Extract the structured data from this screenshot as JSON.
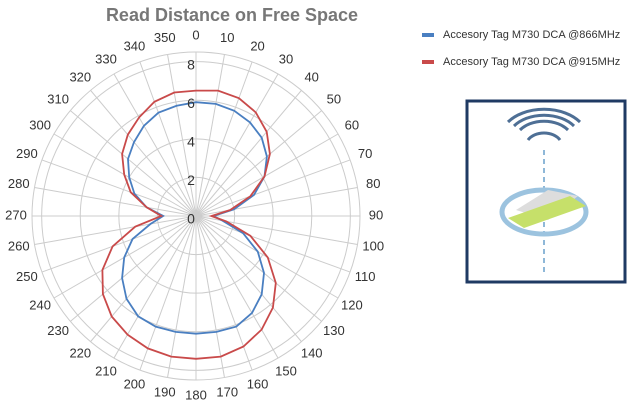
{
  "chart_data": {
    "type": "polar",
    "title": "Read Distance on Free Space",
    "theta": [
      0,
      10,
      20,
      30,
      40,
      50,
      60,
      70,
      80,
      90,
      100,
      110,
      120,
      130,
      140,
      150,
      160,
      170,
      180,
      190,
      200,
      210,
      220,
      230,
      240,
      250,
      260,
      270,
      280,
      290,
      300,
      310,
      320,
      330,
      340,
      350
    ],
    "rlim": [
      0,
      8.5
    ],
    "rticks": [
      0,
      2,
      4,
      6,
      8
    ],
    "grid": true,
    "legend": "top-right",
    "series": [
      {
        "name": "Accesory Tag M730 DCA @866MHz",
        "color": "#4a7fc1",
        "values": [
          5.9,
          5.9,
          5.8,
          5.6,
          5.3,
          4.8,
          4.1,
          3.2,
          2.0,
          0.9,
          1.4,
          2.6,
          3.7,
          4.6,
          5.3,
          5.8,
          6.1,
          6.1,
          6.1,
          6.1,
          6.1,
          6.0,
          5.6,
          5.0,
          4.3,
          3.5,
          2.4,
          1.7,
          2.6,
          3.4,
          4.0,
          4.6,
          5.0,
          5.4,
          5.7,
          5.8
        ]
      },
      {
        "name": "Accesory Tag M730 DCA @915MHz",
        "color": "#c94a4a",
        "values": [
          6.5,
          6.6,
          6.5,
          6.2,
          5.7,
          5.0,
          4.1,
          3.0,
          1.8,
          0.8,
          1.6,
          3.0,
          4.3,
          5.4,
          6.2,
          6.8,
          7.2,
          7.4,
          7.4,
          7.4,
          7.3,
          7.1,
          6.8,
          6.3,
          5.6,
          4.6,
          3.2,
          1.8,
          2.6,
          3.6,
          4.3,
          5.0,
          5.5,
          5.9,
          6.3,
          6.5
        ]
      }
    ]
  }
}
